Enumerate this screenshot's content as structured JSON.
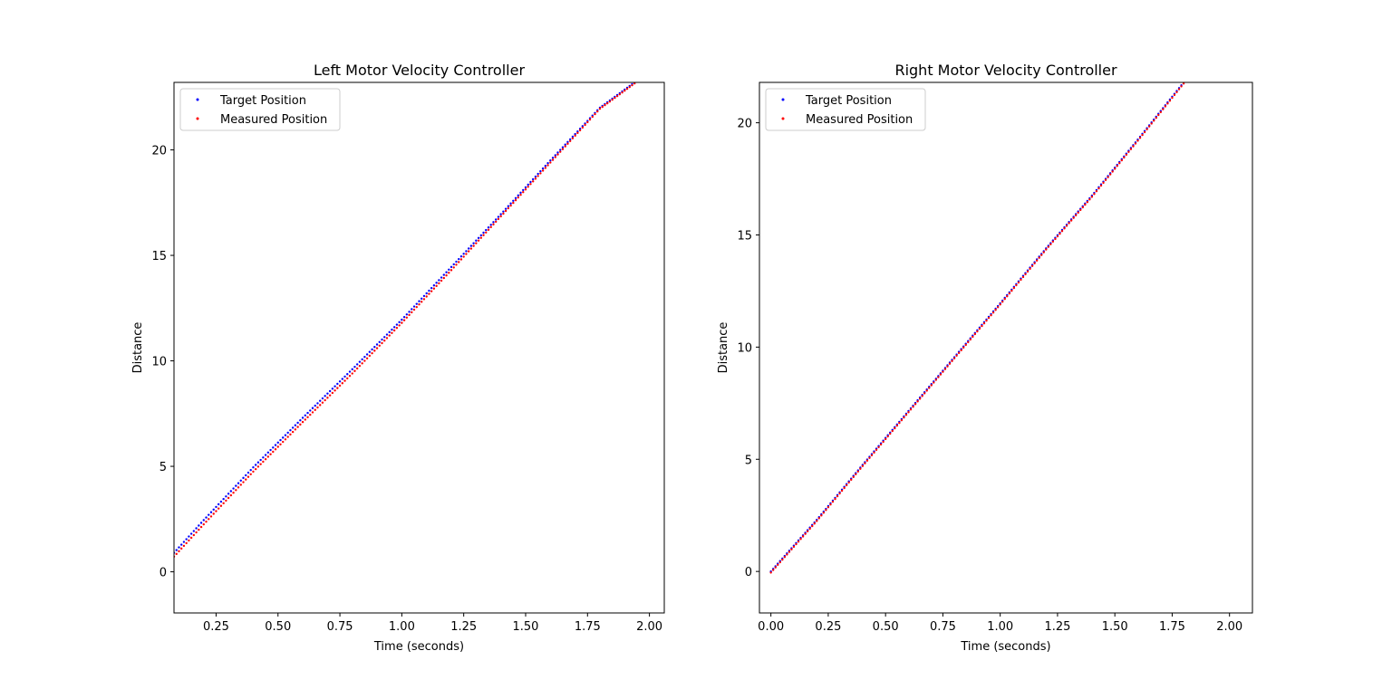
{
  "chart_data": [
    {
      "type": "scatter",
      "title": "Left Motor Velocity Controller",
      "xlabel": "Time (seconds)",
      "ylabel": "Distance",
      "xlim": [
        0.08,
        2.06
      ],
      "ylim": [
        -1.95,
        23.2
      ],
      "xticks": [
        "0.25",
        "0.50",
        "0.75",
        "1.00",
        "1.25",
        "1.50",
        "1.75",
        "2.00"
      ],
      "yticks": [
        "0",
        "5",
        "10",
        "15",
        "20"
      ],
      "legend_position": "upper-left",
      "series": [
        {
          "name": "Target Position",
          "color": "#0000ff",
          "x": [
            0.08,
            0.2,
            0.4,
            0.6,
            0.8,
            1.0,
            1.2,
            1.4,
            1.6,
            1.8,
            1.94
          ],
          "y": [
            0.9,
            2.45,
            4.95,
            7.3,
            9.6,
            11.95,
            14.45,
            16.95,
            19.5,
            22.0,
            23.2
          ]
        },
        {
          "name": "Measured Position",
          "color": "#ff0000",
          "x": [
            0.08,
            0.2,
            0.4,
            0.6,
            0.8,
            1.0,
            1.2,
            1.4,
            1.6,
            1.8,
            1.94
          ],
          "y": [
            0.72,
            2.25,
            4.75,
            7.1,
            9.4,
            11.8,
            14.3,
            16.85,
            19.4,
            21.95,
            23.15
          ]
        }
      ]
    },
    {
      "type": "scatter",
      "title": "Right Motor Velocity Controller",
      "xlabel": "Time (seconds)",
      "ylabel": "Distance",
      "xlim": [
        -0.05,
        2.1
      ],
      "ylim": [
        -1.85,
        21.8
      ],
      "xticks": [
        "0.00",
        "0.25",
        "0.50",
        "0.75",
        "1.00",
        "1.25",
        "1.50",
        "1.75",
        "2.00"
      ],
      "yticks": [
        "0",
        "5",
        "10",
        "15",
        "20"
      ],
      "legend_position": "upper-left",
      "series": [
        {
          "name": "Target Position",
          "color": "#0000ff",
          "x": [
            0.0,
            0.2,
            0.4,
            0.6,
            0.8,
            1.0,
            1.2,
            1.4,
            1.6,
            1.8
          ],
          "y": [
            0.0,
            2.3,
            4.75,
            7.15,
            9.55,
            11.95,
            14.4,
            16.75,
            19.25,
            21.8
          ]
        },
        {
          "name": "Measured Position",
          "color": "#ff0000",
          "x": [
            0.0,
            0.2,
            0.4,
            0.6,
            0.8,
            1.0,
            1.2,
            1.4,
            1.6,
            1.8
          ],
          "y": [
            -0.05,
            2.25,
            4.7,
            7.1,
            9.5,
            11.9,
            14.35,
            16.7,
            19.2,
            21.75
          ]
        }
      ]
    }
  ]
}
